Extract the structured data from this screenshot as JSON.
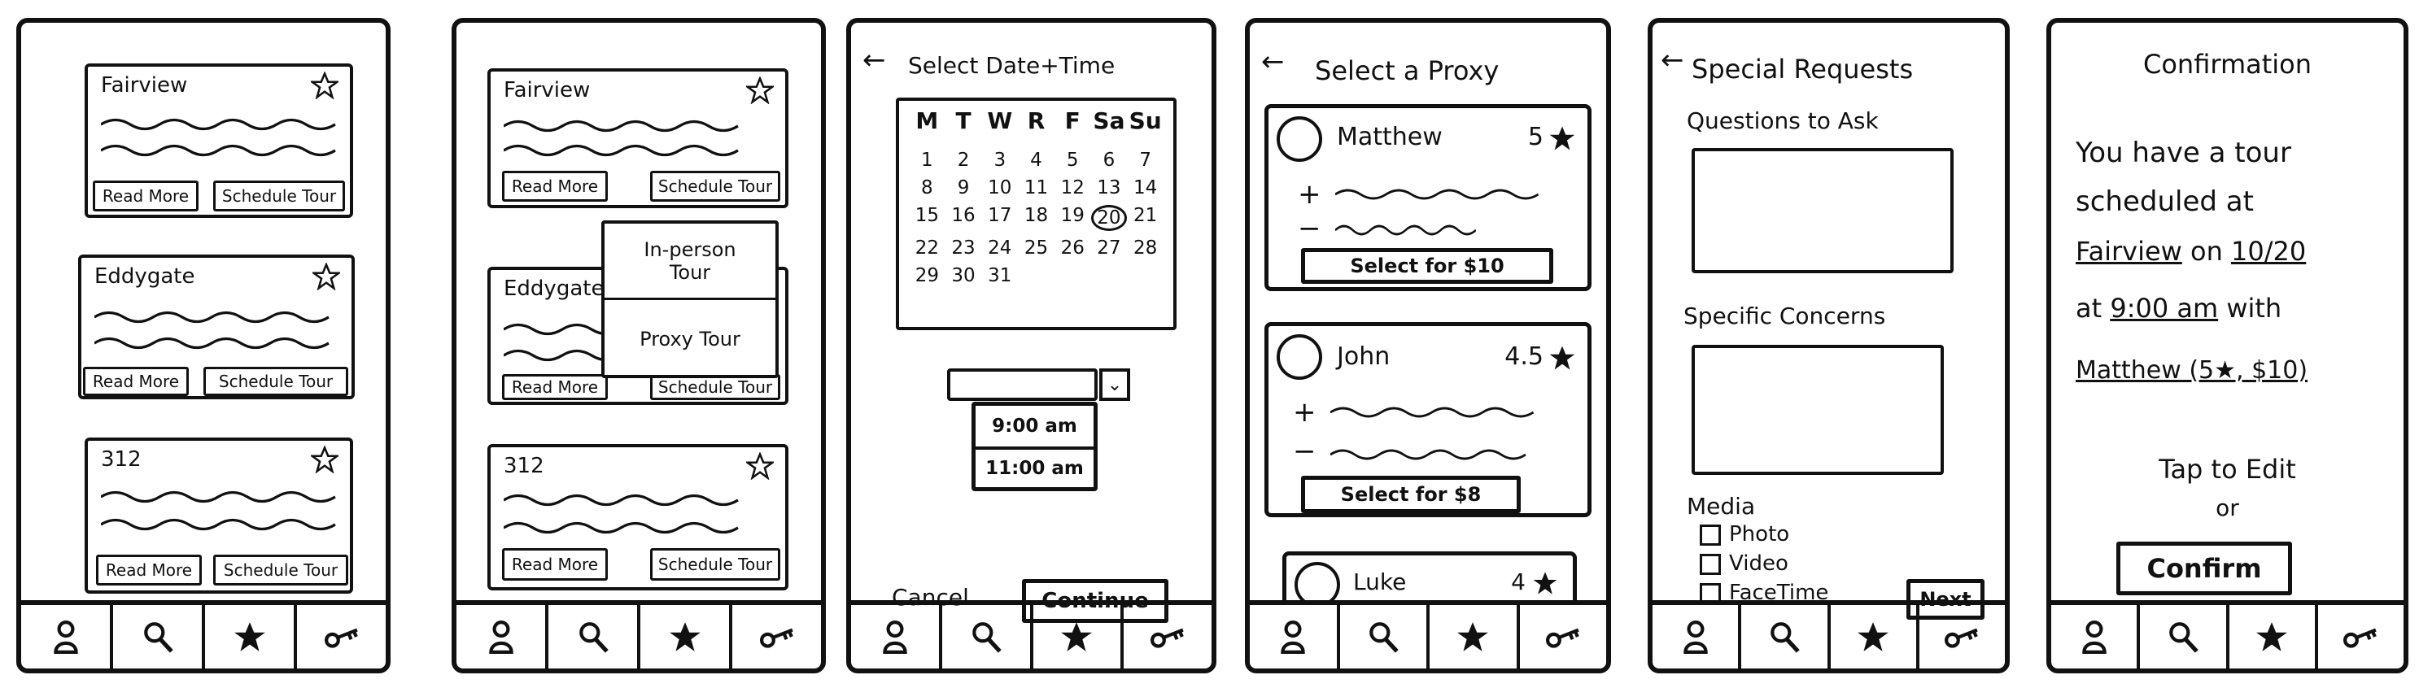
{
  "screens": {
    "listings": {
      "cards": [
        {
          "name": "Fairview",
          "read_more": "Read More",
          "schedule": "Schedule Tour"
        },
        {
          "name": "Eddygate",
          "read_more": "Read More",
          "schedule": "Schedule Tour"
        },
        {
          "name": "312",
          "read_more": "Read More",
          "schedule": "Schedule Tour"
        }
      ]
    },
    "listings_popup": {
      "cards": [
        {
          "name": "Fairview",
          "read_more": "Read More",
          "schedule": "Schedule Tour"
        },
        {
          "name": "Eddygate",
          "read_more": "Read More",
          "schedule": "Schedule Tour"
        },
        {
          "name": "312",
          "read_more": "Read More",
          "schedule": "Schedule Tour"
        }
      ],
      "popup": {
        "option1": "In-person Tour",
        "option2": "Proxy Tour"
      }
    },
    "datetime": {
      "title": "Select Date+Time",
      "days": [
        "M",
        "T",
        "W",
        "R",
        "F",
        "Sa",
        "Su"
      ],
      "dates": [
        "1",
        "2",
        "3",
        "4",
        "5",
        "6",
        "7",
        "8",
        "9",
        "10",
        "11",
        "12",
        "13",
        "14",
        "15",
        "16",
        "17",
        "18",
        "19",
        "20",
        "21",
        "22",
        "23",
        "24",
        "25",
        "26",
        "27",
        "28",
        "29",
        "30",
        "31"
      ],
      "selected_date": "20",
      "times": [
        "9:00 am",
        "11:00 am"
      ],
      "cancel": "Cancel",
      "continue": "Continue"
    },
    "proxy": {
      "title": "Select a Proxy",
      "proxies": [
        {
          "name": "Matthew",
          "rating": "5",
          "select": "Select for $10"
        },
        {
          "name": "John",
          "rating": "4.5",
          "select": "Select for $8"
        },
        {
          "name": "Luke",
          "rating": "4"
        }
      ]
    },
    "requests": {
      "title": "Special Requests",
      "questions_label": "Questions to Ask",
      "concerns_label": "Specific Concerns",
      "media_label": "Media",
      "media_options": [
        "Photo",
        "Video",
        "FaceTime"
      ],
      "next": "Next"
    },
    "confirmation": {
      "title": "Confirmation",
      "line1": "You have a tour",
      "line2": "scheduled at",
      "property": "Fairview",
      "on": "on",
      "date": "10/20",
      "at": "at",
      "time": "9:00 am",
      "with": "with",
      "proxy": "Matthew (5★, $10)",
      "tap_edit": "Tap to Edit",
      "or": "or",
      "confirm": "Confirm"
    }
  },
  "icons": {
    "nav": [
      "person-icon",
      "search-icon",
      "star-icon",
      "key-icon"
    ],
    "card": "star-icon",
    "back": "back-arrow-icon"
  }
}
